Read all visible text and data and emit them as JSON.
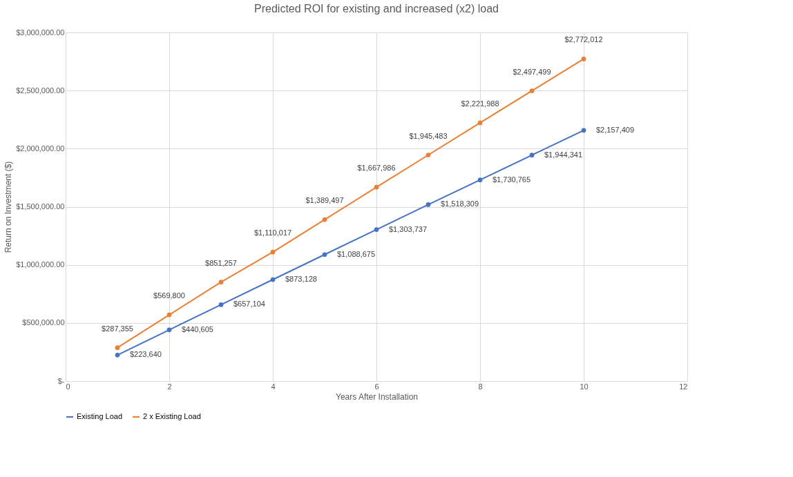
{
  "chart_data": {
    "type": "line",
    "title": "Predicted ROI for existing and increased (x2) load",
    "xlabel": "Years After Installation",
    "ylabel": "Return on Investment ($)",
    "x": [
      1,
      2,
      3,
      4,
      5,
      6,
      7,
      8,
      9,
      10
    ],
    "series": [
      {
        "name": "Existing Load",
        "color": "#4472c4",
        "values": [
          223640,
          440605,
          657104,
          873128,
          1088675,
          1303737,
          1518309,
          1730765,
          1944341,
          2157409
        ],
        "value_labels": [
          "$223,640",
          "$440,605",
          "$657,104",
          "$873,128",
          "$1,088,675",
          "$1,303,737",
          "$1,518,309",
          "$1,730,765",
          "$1,944,341",
          "$2,157,409"
        ]
      },
      {
        "name": "2 x Existing Load",
        "color": "#ed7d31",
        "values": [
          287355,
          569800,
          851257,
          1110017,
          1389497,
          1667986,
          1945483,
          2221988,
          2497499,
          2772012
        ],
        "value_labels": [
          "$287,355",
          "$569,800",
          "$851,257",
          "$1,110,017",
          "$1,389,497",
          "$1,667,986",
          "$1,945,483",
          "$2,221,988",
          "$2,497,499",
          "$2,772,012"
        ]
      }
    ],
    "xlim": [
      0,
      12
    ],
    "xticks": [
      0,
      2,
      4,
      6,
      8,
      10,
      12
    ],
    "ylim": [
      0,
      3000000
    ],
    "yticks": [
      {
        "value": 0,
        "label": "$-"
      },
      {
        "value": 500000,
        "label": "$500,000.00"
      },
      {
        "value": 1000000,
        "label": "$1,000,000.00"
      },
      {
        "value": 1500000,
        "label": "$1,500,000.00"
      },
      {
        "value": 2000000,
        "label": "$2,000,000.00"
      },
      {
        "value": 2500000,
        "label": "$2,500,000.00"
      },
      {
        "value": 3000000,
        "label": "$3,000,000.00"
      }
    ],
    "grid": true,
    "legend": "bottom",
    "marker": "circle",
    "line_style": "solid"
  }
}
